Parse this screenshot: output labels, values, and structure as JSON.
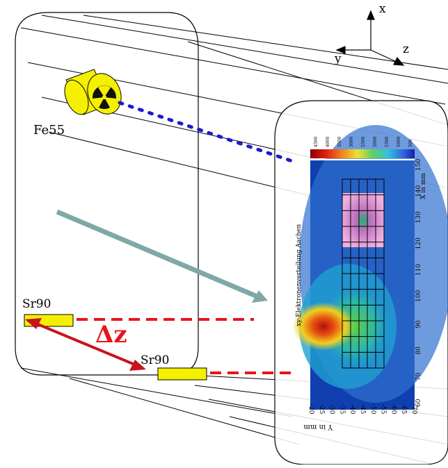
{
  "axes": {
    "x": "x",
    "y": "y",
    "z": "z"
  },
  "sources": {
    "fe55": "Fe55",
    "sr90_top": "Sr90",
    "sr90_bottom": "Sr90"
  },
  "delta_label": "Δz",
  "heatmap": {
    "title": "xy-Elektronenverteilung Aachen",
    "x_axis_label": "X in mm",
    "y_axis_label": "Y in mm",
    "x_ticks": [
      "150",
      "140",
      "130",
      "120",
      "110",
      "100",
      "90",
      "80",
      "70",
      "60"
    ],
    "y_ticks": [
      "-20",
      "-25",
      "-30",
      "-35",
      "-40",
      "-45",
      "-50",
      "-55",
      "-60",
      "-65",
      "-70"
    ],
    "colorbar_ticks": [
      "4500",
      "4000",
      "3500",
      "3000",
      "2500",
      "2000",
      "1500",
      "1000",
      "500"
    ]
  },
  "colors": {
    "source_fill": "#ffff00",
    "dashed_red": "#e8141c",
    "dotted_blue": "#1a1acc",
    "beam_arrow": "#7fa8a8",
    "delta_arrow": "#c8141c"
  }
}
